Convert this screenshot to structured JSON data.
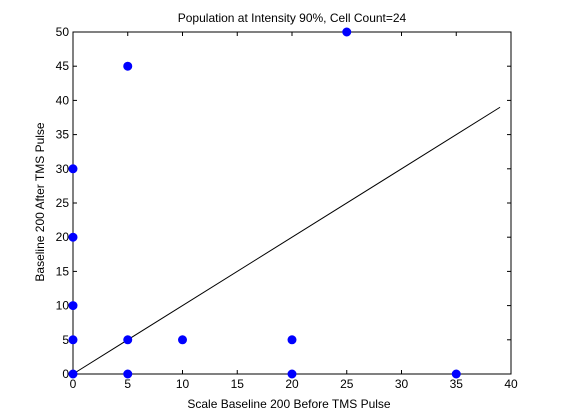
{
  "chart_data": {
    "type": "scatter",
    "title": "Population at Intensity 90%, Cell Count=24",
    "xlabel": "Scale Baseline 200 Before TMS Pulse",
    "ylabel": "Baseline 200 After TMS Pulse",
    "xlim": [
      0,
      40
    ],
    "ylim": [
      0,
      50
    ],
    "xticks": [
      0,
      5,
      10,
      15,
      20,
      25,
      30,
      35,
      40
    ],
    "yticks": [
      0,
      5,
      10,
      15,
      20,
      25,
      30,
      35,
      40,
      45,
      50
    ],
    "grid": false,
    "legend": "none",
    "series": [
      {
        "points": [
          {
            "x": 0,
            "y": 0
          },
          {
            "x": 0,
            "y": 5
          },
          {
            "x": 0,
            "y": 10
          },
          {
            "x": 0,
            "y": 20
          },
          {
            "x": 0,
            "y": 30
          },
          {
            "x": 5,
            "y": 0
          },
          {
            "x": 5,
            "y": 5
          },
          {
            "x": 5,
            "y": 45
          },
          {
            "x": 10,
            "y": 5
          },
          {
            "x": 20,
            "y": 0
          },
          {
            "x": 20,
            "y": 5
          },
          {
            "x": 25,
            "y": 50
          },
          {
            "x": 35,
            "y": 0
          }
        ],
        "color": "#0000ff"
      }
    ],
    "fit_line": {
      "x": [
        0,
        39
      ],
      "y": [
        0,
        39
      ],
      "color": "#000000"
    }
  }
}
